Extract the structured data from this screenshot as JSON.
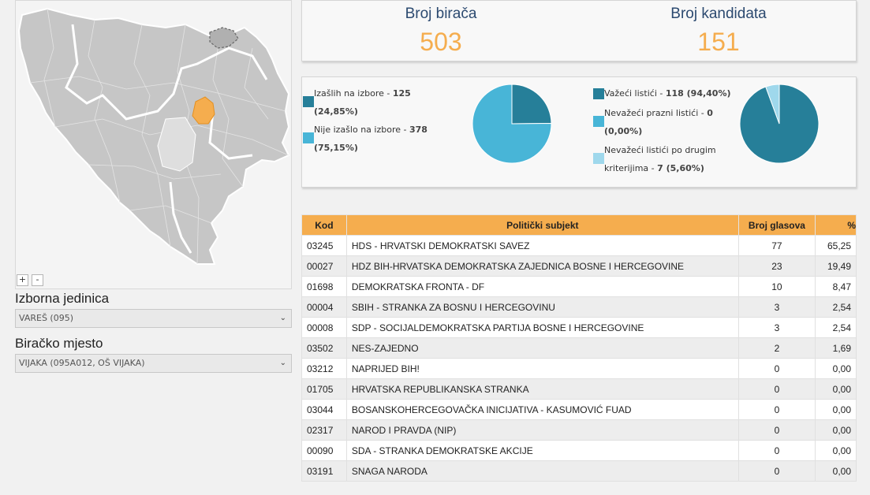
{
  "map": {
    "zoom_in_label": "+",
    "zoom_out_label": "-",
    "highlight_color": "#f5ad4e",
    "region_color": "#c8c8c8",
    "border_color": "#ffffff"
  },
  "izborna_jedinica": {
    "label": "Izborna jedinica",
    "value": "VAREŠ (095)"
  },
  "biracko_mjesto": {
    "label": "Biračko mjesto",
    "value": "VIJAKA (095A012, OŠ VIJAKA)"
  },
  "stats": {
    "voters_label": "Broj birača",
    "voters_value": "503",
    "candidates_label": "Broj kandidata",
    "candidates_value": "151"
  },
  "turnout": {
    "colors": [
      "#267f99",
      "#48b5d7"
    ],
    "items": [
      {
        "label": "Izašlih na izbore - ",
        "value": "125",
        "pct": "(24,85%)",
        "share": 24.85
      },
      {
        "label": "Nije izašlo na izbore - ",
        "value": "378",
        "pct": "(75,15%)",
        "share": 75.15
      }
    ]
  },
  "ballots": {
    "colors": [
      "#267f99",
      "#48b5d7",
      "#9fd8ec"
    ],
    "items": [
      {
        "label": "Važeći listići - ",
        "value": "118 (94,40%)",
        "share": 94.4
      },
      {
        "label": "Nevažeći prazni listići - ",
        "value": "0",
        "pct": "(0,00%)",
        "share": 0
      },
      {
        "label": "Nevažeći listići po drugim",
        "label2": "kriterijima - ",
        "value": "7 (5,60%)",
        "share": 5.6
      }
    ]
  },
  "table": {
    "headers": {
      "kod": "Kod",
      "subject": "Politički subjekt",
      "votes": "Broj glasova",
      "pct": "%"
    },
    "rows": [
      {
        "kod": "03245",
        "subject": "HDS - HRVATSKI DEMOKRATSKI SAVEZ",
        "votes": "77",
        "pct": "65,25"
      },
      {
        "kod": "00027",
        "subject": "HDZ BIH-HRVATSKA DEMOKRATSKA ZAJEDNICA BOSNE I HERCEGOVINE",
        "votes": "23",
        "pct": "19,49"
      },
      {
        "kod": "01698",
        "subject": "DEMOKRATSKA FRONTA - DF",
        "votes": "10",
        "pct": "8,47"
      },
      {
        "kod": "00004",
        "subject": "SBIH - STRANKA ZA BOSNU I HERCEGOVINU",
        "votes": "3",
        "pct": "2,54"
      },
      {
        "kod": "00008",
        "subject": "SDP - SOCIJALDEMOKRATSKA PARTIJA BOSNE I HERCEGOVINE",
        "votes": "3",
        "pct": "2,54"
      },
      {
        "kod": "03502",
        "subject": "NES-ZAJEDNO",
        "votes": "2",
        "pct": "1,69"
      },
      {
        "kod": "03212",
        "subject": "NAPRIJED BIH!",
        "votes": "0",
        "pct": "0,00"
      },
      {
        "kod": "01705",
        "subject": "HRVATSKA REPUBLIKANSKA STRANKA",
        "votes": "0",
        "pct": "0,00"
      },
      {
        "kod": "03044",
        "subject": "BOSANSKOHERCEGOVAČKA INICIJATIVA - KASUMOVIĆ FUAD",
        "votes": "0",
        "pct": "0,00"
      },
      {
        "kod": "02317",
        "subject": "NAROD I PRAVDA (NIP)",
        "votes": "0",
        "pct": "0,00"
      },
      {
        "kod": "00090",
        "subject": "SDA - STRANKA DEMOKRATSKE AKCIJE",
        "votes": "0",
        "pct": "0,00"
      },
      {
        "kod": "03191",
        "subject": "SNAGA NARODA",
        "votes": "0",
        "pct": "0,00"
      }
    ]
  }
}
